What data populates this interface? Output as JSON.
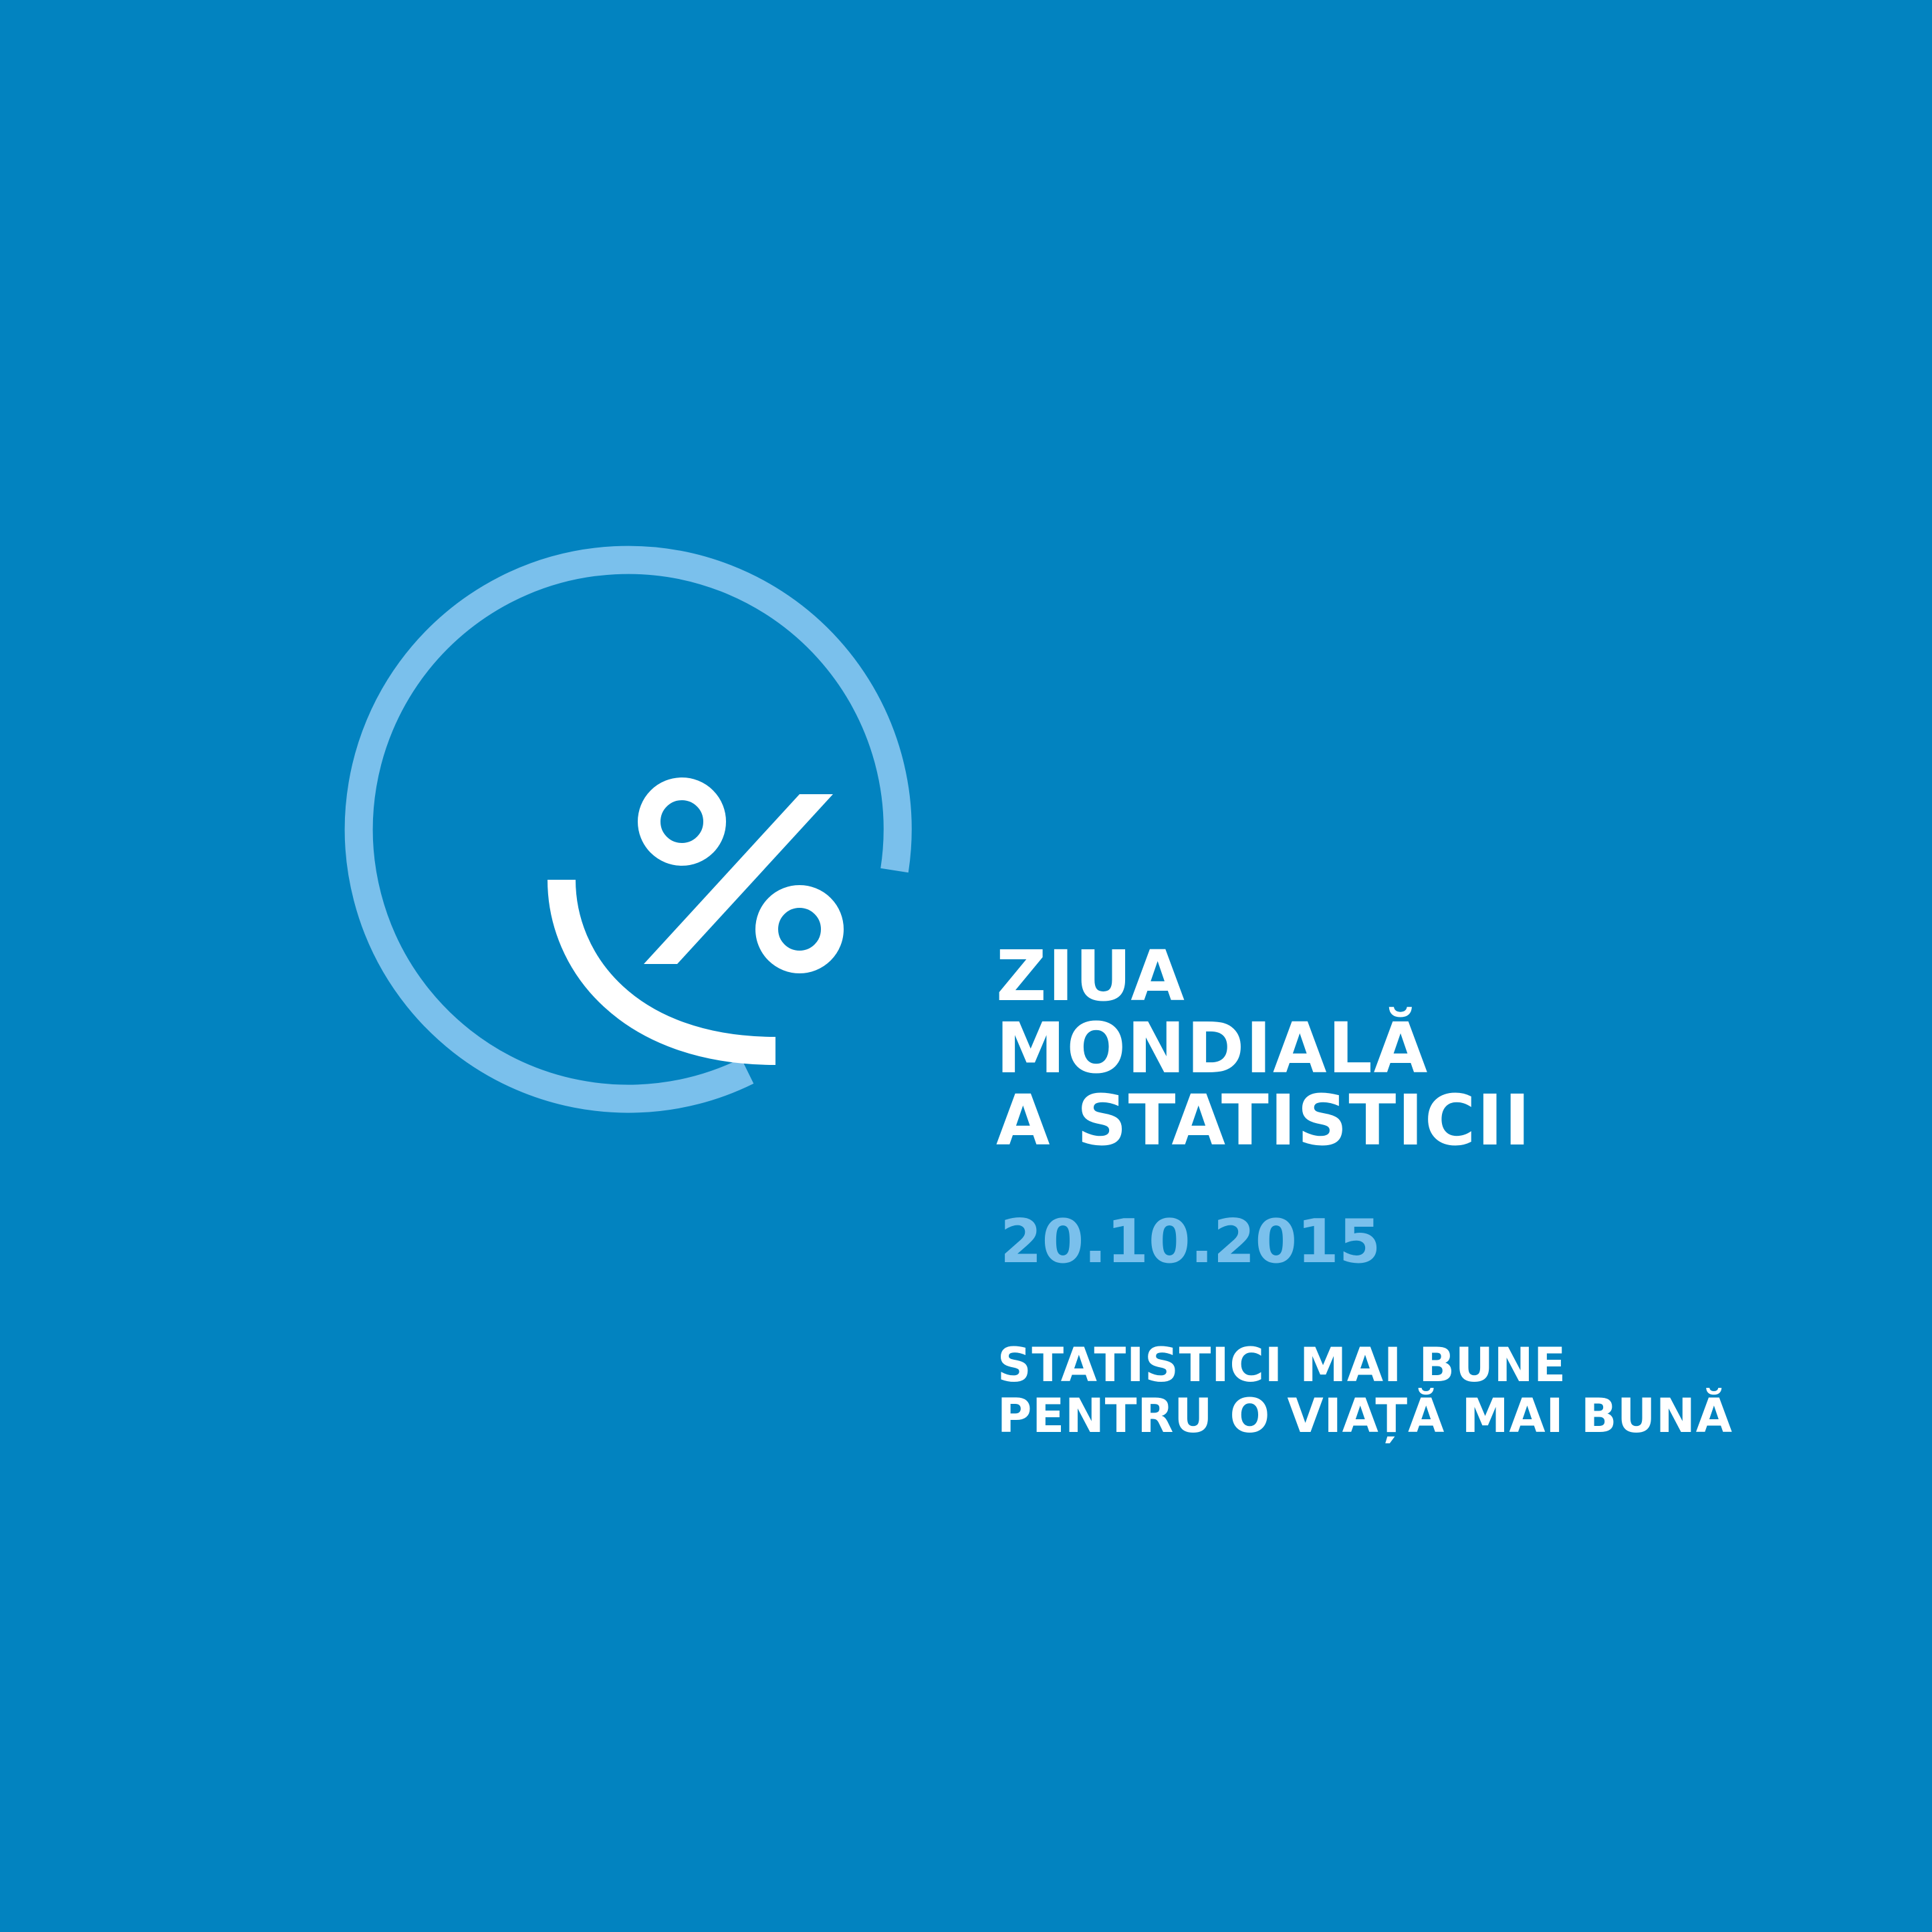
{
  "background_color": "#0283c0",
  "accent_color": "#7ac0ec",
  "text_color": "#ffffff",
  "logo": {
    "icon": "percent-smile-logo-icon"
  },
  "title": {
    "line1": "ZIUA",
    "line2": "MONDIALĂ",
    "line3": "A STATISTICII"
  },
  "date": "20.10.2015",
  "slogan": {
    "line1": "STATISTICI MAI BUNE",
    "line2": "PENTRU O VIAȚĂ MAI BUNĂ"
  }
}
